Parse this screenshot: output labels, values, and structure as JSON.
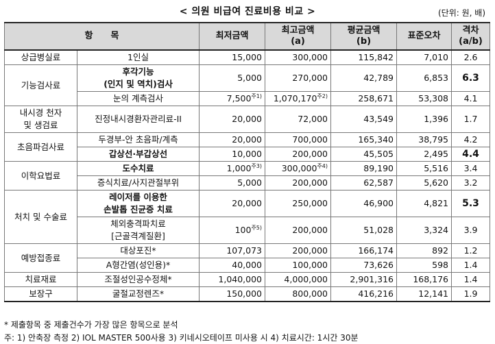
{
  "title": "< 의원 비급여 진료비용 비교 >",
  "unit_note": "(단위: 원, 배)",
  "headers": {
    "item": "항　　목",
    "min": "최저금액",
    "max_1": "최고금액",
    "max_2": "(a)",
    "avg_1": "평균금액",
    "avg_2": "(b)",
    "sd": "표준오차",
    "ratio_1": "격차",
    "ratio_2": "(a/b)"
  },
  "rows": [
    {
      "cat": "상급병실료",
      "item": "1인실",
      "min": "15,000",
      "max": "300,000",
      "avg": "115,842",
      "sd": "7,010",
      "ratio": "2.6"
    },
    {
      "cat": "기능검사료",
      "item_1": "후각기능",
      "item_2": "(인지 및 역치)검사",
      "min": "5,000",
      "max": "270,000",
      "avg": "42,789",
      "sd": "6,853",
      "ratio": "6.3"
    },
    {
      "item": "눈의 계측검사",
      "min": "7,500",
      "min_sup": "주1)",
      "max": "1,070,170",
      "max_sup": "주2)",
      "avg": "258,671",
      "sd": "53,308",
      "ratio": "4.1"
    },
    {
      "cat_1": "내시경 천자",
      "cat_2": "및 생검료",
      "item": "진정내시경환자관리료-II",
      "min": "20,000",
      "max": "72,000",
      "avg": "43,549",
      "sd": "1,396",
      "ratio": "1.7"
    },
    {
      "cat": "초음파검사료",
      "item": "두경부-안 초음파/계측",
      "min": "20,000",
      "max": "700,000",
      "avg": "165,340",
      "sd": "38,795",
      "ratio": "4.2"
    },
    {
      "item": "갑상선·부갑상선",
      "min": "10,000",
      "max": "200,000",
      "avg": "45,505",
      "sd": "2,495",
      "ratio": "4.4"
    },
    {
      "cat": "이학요법료",
      "item": "도수치료",
      "min": "1,000",
      "min_sup": "주3)",
      "max": "300,000",
      "max_sup": "주4)",
      "avg": "89,190",
      "sd": "5,516",
      "ratio": "3.4"
    },
    {
      "item": "증식치료/사지관절부위",
      "min": "5,000",
      "max": "200,000",
      "avg": "62,587",
      "sd": "5,620",
      "ratio": "3.2"
    },
    {
      "cat": "처치 및 수술료",
      "item_1": "레이저를 이용한",
      "item_2": "손발톱 진균증 치료",
      "min": "20,000",
      "max": "250,000",
      "avg": "46,900",
      "sd": "4,821",
      "ratio": "5.3"
    },
    {
      "item_1": "체외충격파치료",
      "item_2": "[근골격계질환]",
      "min": "100",
      "min_sup": "주5)",
      "max": "200,000",
      "avg": "51,028",
      "sd": "3,324",
      "ratio": "3.9"
    },
    {
      "cat": "예방접종료",
      "item": "대상포진*",
      "min": "107,073",
      "max": "200,000",
      "avg": "166,174",
      "sd": "892",
      "ratio": "1.2"
    },
    {
      "item": "A형간염(성인용)*",
      "min": "40,000",
      "max": "100,000",
      "avg": "73,626",
      "sd": "598",
      "ratio": "1.4"
    },
    {
      "cat": "치료재료",
      "item": "조절성인공수정체*",
      "min": "1,040,000",
      "max": "4,000,000",
      "avg": "2,901,316",
      "sd": "168,176",
      "ratio": "1.4"
    },
    {
      "cat": "보장구",
      "item": "굴절교정렌즈*",
      "min": "150,000",
      "max": "800,000",
      "avg": "416,216",
      "sd": "12,141",
      "ratio": "1.9"
    }
  ],
  "footnote_1": "* 제출항목 중 제출건수가 가장 많은 항목으로 분석",
  "footnote_2": "주:  1) 안축장 측정  2) IOL MASTER 500사용  3) 키네시오테이프 미사용 시  4) 치료시간: 1시간 30분"
}
